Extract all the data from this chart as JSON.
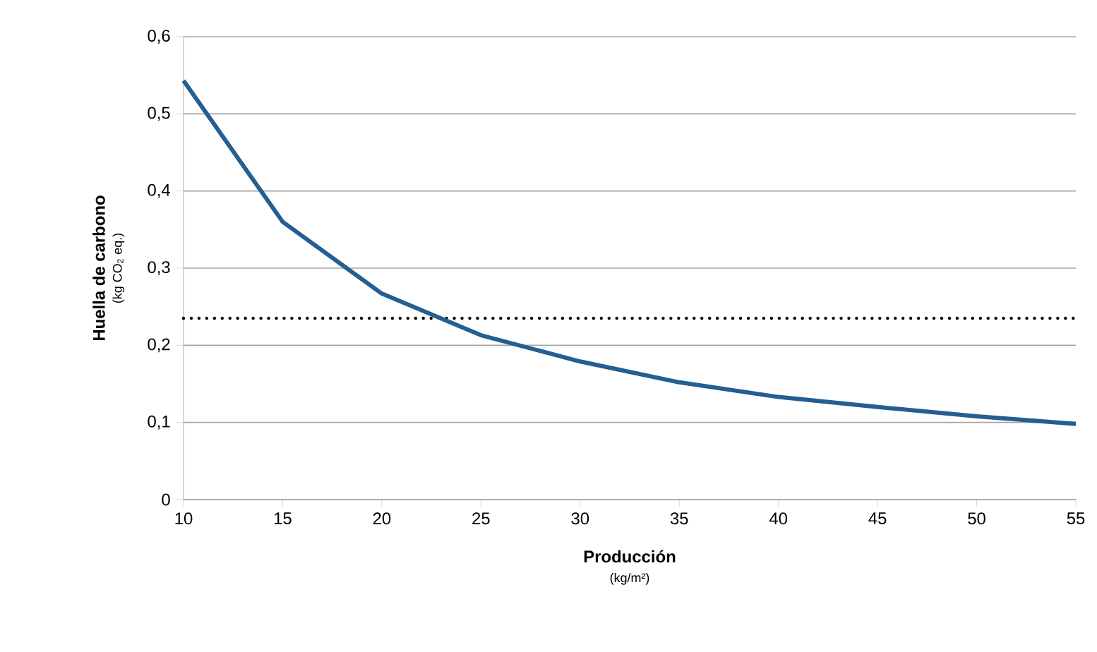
{
  "chart_data": {
    "type": "line",
    "xlabel": "Producción",
    "ylabel": "Huella de carbono",
    "annotations": [
      "(kg/m²)",
      "(kg CO$_{2}$ eq.)"
    ],
    "x": [
      10,
      15,
      20,
      25,
      30,
      35,
      40,
      45,
      50,
      55
    ],
    "series": [
      {
        "color": "#255e91",
        "values": [
          0.543,
          0.36,
          0.267,
          0.213,
          0.179,
          0.152,
          0.133,
          0.12,
          0.108,
          0.098
        ]
      }
    ],
    "xlim": [
      10,
      55
    ],
    "xticks": [
      10,
      15,
      20,
      25,
      30,
      35,
      40,
      45,
      50,
      55
    ],
    "ylim": [
      0,
      0.6
    ],
    "yticks": [
      0,
      {
        "value": 0.1,
        "label": "0,1"
      },
      {
        "value": 0.2,
        "label": "0,2"
      },
      {
        "value": 0.3,
        "label": "0,3"
      },
      {
        "value": 0.4,
        "label": "0,4"
      },
      {
        "value": 0.5,
        "label": "0,5"
      },
      {
        "value": 0.6,
        "label": "0,6"
      }
    ],
    "grid": "y",
    "ref_lines": [
      {
        "axis": "y",
        "value": 0.235,
        "color": "#000000",
        "line_style": "dotted"
      }
    ]
  }
}
